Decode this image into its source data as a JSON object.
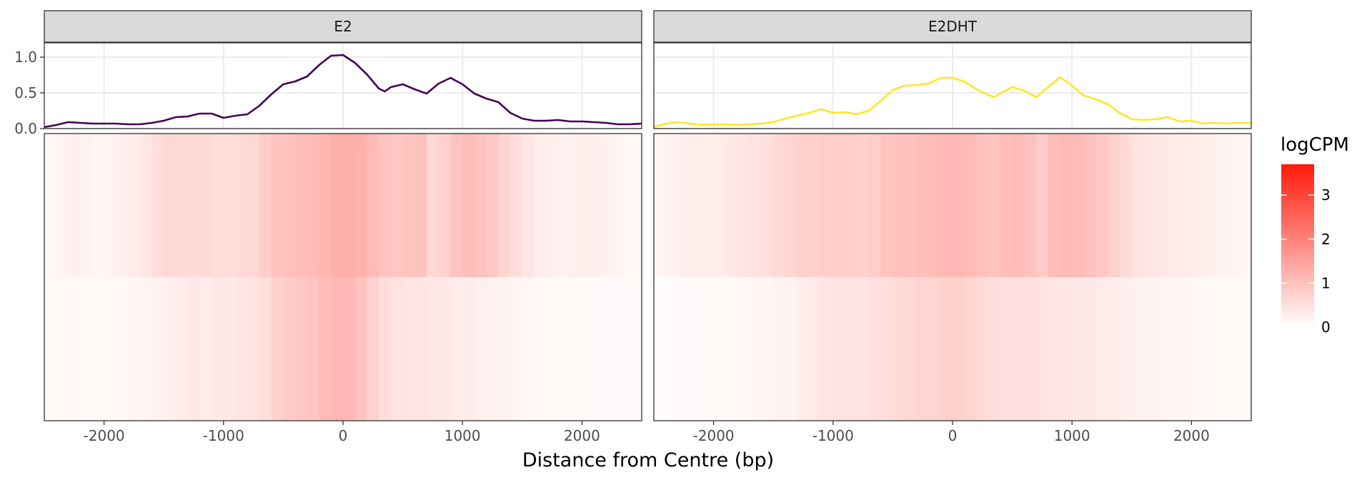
{
  "chart_data": {
    "type": "heatmap",
    "x_unit": "bp",
    "xlabel": "Distance from Centre (bp)",
    "xlim": [
      -2500,
      2500
    ],
    "x_ticks": [
      -2000,
      -1000,
      0,
      1000,
      2000
    ],
    "x_tick_labels": [
      "-2000",
      "-1000",
      "0",
      "1000",
      "2000"
    ],
    "profile_ylim": [
      0,
      1.2
    ],
    "profile_y_ticks": [
      0.0,
      0.5,
      1.0
    ],
    "profile_y_tick_labels": [
      "0.0",
      "0.5",
      "1.0"
    ],
    "legend": {
      "title": "logCPM",
      "min": 0,
      "max": 3.7,
      "ticks": [
        0,
        1,
        2,
        3
      ],
      "tick_labels": [
        "0",
        "1",
        "2",
        "3"
      ],
      "color_low": "#ffffff",
      "color_high": "#ff1a0a"
    },
    "bin_centers": [
      -2450,
      -2350,
      -2250,
      -2150,
      -2050,
      -1950,
      -1850,
      -1750,
      -1650,
      -1550,
      -1450,
      -1350,
      -1250,
      -1150,
      -1050,
      -950,
      -850,
      -750,
      -650,
      -550,
      -450,
      -350,
      -250,
      -150,
      -50,
      50,
      150,
      250,
      350,
      450,
      550,
      650,
      750,
      850,
      950,
      1050,
      1150,
      1250,
      1350,
      1450,
      1550,
      1650,
      1750,
      1850,
      1950,
      2050,
      2150,
      2250,
      2350,
      2450
    ],
    "panels": [
      {
        "name": "E2",
        "line_color": "#440154",
        "profile_x": [
          -2500,
          -2400,
          -2300,
          -2200,
          -2100,
          -2000,
          -1900,
          -1800,
          -1700,
          -1600,
          -1500,
          -1400,
          -1300,
          -1200,
          -1100,
          -1000,
          -900,
          -800,
          -700,
          -600,
          -500,
          -400,
          -300,
          -200,
          -100,
          0,
          100,
          200,
          300,
          350,
          400,
          500,
          600,
          700,
          800,
          900,
          1000,
          1100,
          1200,
          1300,
          1400,
          1500,
          1600,
          1700,
          1800,
          1900,
          2000,
          2100,
          2200,
          2300,
          2400,
          2500
        ],
        "profile_y": [
          0.02,
          0.05,
          0.09,
          0.08,
          0.07,
          0.07,
          0.07,
          0.06,
          0.06,
          0.08,
          0.11,
          0.16,
          0.17,
          0.21,
          0.21,
          0.15,
          0.18,
          0.2,
          0.32,
          0.48,
          0.62,
          0.66,
          0.73,
          0.89,
          1.02,
          1.03,
          0.92,
          0.76,
          0.56,
          0.52,
          0.58,
          0.62,
          0.55,
          0.49,
          0.63,
          0.71,
          0.62,
          0.49,
          0.42,
          0.37,
          0.22,
          0.14,
          0.11,
          0.11,
          0.12,
          0.1,
          0.1,
          0.09,
          0.08,
          0.06,
          0.06,
          0.07
        ],
        "rows": [
          [
            0.12,
            0.2,
            0.25,
            0.2,
            0.15,
            0.2,
            0.25,
            0.3,
            0.4,
            0.55,
            0.65,
            0.6,
            0.6,
            0.62,
            0.55,
            0.55,
            0.6,
            0.65,
            0.8,
            0.95,
            1.0,
            1.05,
            1.1,
            1.2,
            1.3,
            1.3,
            1.25,
            1.1,
            0.95,
            0.9,
            0.95,
            1.0,
            0.65,
            0.75,
            0.95,
            1.05,
            1.0,
            0.9,
            0.7,
            0.55,
            0.4,
            0.3,
            0.25,
            0.22,
            0.25,
            0.25,
            0.25,
            0.2,
            0.15,
            0.12
          ],
          [
            0.1,
            0.12,
            0.12,
            0.1,
            0.1,
            0.12,
            0.12,
            0.15,
            0.18,
            0.2,
            0.25,
            0.3,
            0.35,
            0.3,
            0.35,
            0.35,
            0.4,
            0.45,
            0.55,
            0.75,
            0.85,
            0.9,
            0.95,
            1.1,
            1.15,
            1.15,
            0.95,
            0.75,
            0.55,
            0.45,
            0.4,
            0.4,
            0.35,
            0.35,
            0.3,
            0.3,
            0.25,
            0.2,
            0.2,
            0.15,
            0.12,
            0.12,
            0.12,
            0.1,
            0.1,
            0.1,
            0.08,
            0.08,
            0.08,
            0.08
          ]
        ]
      },
      {
        "name": "E2DHT",
        "line_color": "#fde725",
        "profile_x": [
          -2500,
          -2400,
          -2300,
          -2200,
          -2100,
          -2000,
          -1900,
          -1800,
          -1700,
          -1600,
          -1500,
          -1400,
          -1300,
          -1200,
          -1100,
          -1000,
          -900,
          -800,
          -700,
          -600,
          -500,
          -400,
          -300,
          -200,
          -100,
          0,
          100,
          200,
          300,
          350,
          400,
          500,
          600,
          700,
          800,
          900,
          1000,
          1100,
          1200,
          1300,
          1400,
          1500,
          1600,
          1700,
          1800,
          1900,
          2000,
          2100,
          2200,
          2300,
          2400,
          2500
        ],
        "profile_y": [
          0.02,
          0.07,
          0.09,
          0.07,
          0.05,
          0.06,
          0.06,
          0.05,
          0.06,
          0.07,
          0.09,
          0.14,
          0.18,
          0.22,
          0.27,
          0.22,
          0.23,
          0.2,
          0.25,
          0.39,
          0.54,
          0.6,
          0.61,
          0.63,
          0.71,
          0.71,
          0.66,
          0.55,
          0.47,
          0.44,
          0.49,
          0.58,
          0.53,
          0.44,
          0.58,
          0.72,
          0.6,
          0.46,
          0.41,
          0.34,
          0.22,
          0.13,
          0.12,
          0.13,
          0.16,
          0.1,
          0.11,
          0.07,
          0.08,
          0.07,
          0.08,
          0.08
        ],
        "rows": [
          [
            0.15,
            0.2,
            0.25,
            0.3,
            0.25,
            0.3,
            0.35,
            0.4,
            0.45,
            0.5,
            0.6,
            0.7,
            0.75,
            0.75,
            0.8,
            0.8,
            0.8,
            0.75,
            0.8,
            0.95,
            1.0,
            1.0,
            1.05,
            1.1,
            1.15,
            1.15,
            1.1,
            1.0,
            0.95,
            1.05,
            1.1,
            1.0,
            0.85,
            1.05,
            1.15,
            1.1,
            1.0,
            0.9,
            0.75,
            0.6,
            0.45,
            0.38,
            0.35,
            0.32,
            0.3,
            0.28,
            0.25,
            0.2,
            0.18,
            0.15
          ],
          [
            0.05,
            0.06,
            0.08,
            0.08,
            0.1,
            0.1,
            0.1,
            0.12,
            0.15,
            0.15,
            0.2,
            0.2,
            0.3,
            0.35,
            0.4,
            0.45,
            0.45,
            0.45,
            0.5,
            0.55,
            0.6,
            0.65,
            0.7,
            0.7,
            0.75,
            0.75,
            0.7,
            0.6,
            0.55,
            0.5,
            0.5,
            0.5,
            0.45,
            0.4,
            0.4,
            0.35,
            0.35,
            0.3,
            0.3,
            0.25,
            0.22,
            0.2,
            0.18,
            0.15,
            0.15,
            0.12,
            0.12,
            0.1,
            0.1,
            0.08
          ]
        ]
      }
    ]
  }
}
